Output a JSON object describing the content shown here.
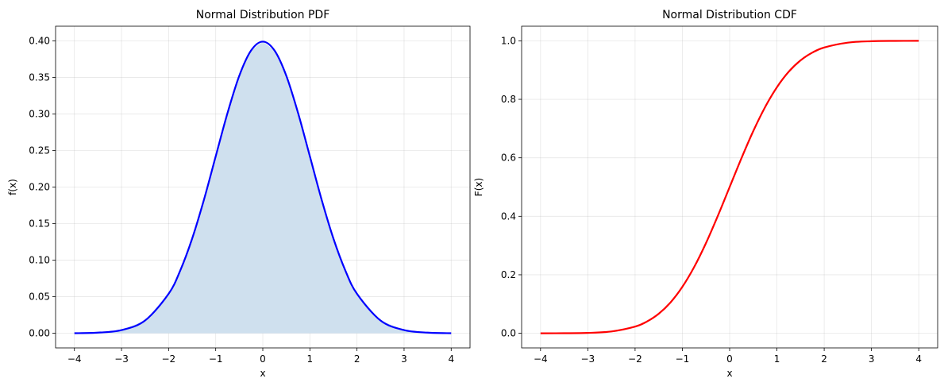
{
  "chart_data": [
    {
      "type": "area",
      "title": "Normal Distribution PDF",
      "xlabel": "x",
      "ylabel": "f(x)",
      "xlim": [
        -4.4,
        4.4
      ],
      "ylim": [
        -0.02,
        0.42
      ],
      "xticks": [
        -4,
        -3,
        -2,
        -1,
        0,
        1,
        2,
        3,
        4
      ],
      "xtick_labels": [
        "−4",
        "−3",
        "−2",
        "−1",
        "0",
        "1",
        "2",
        "3",
        "4"
      ],
      "yticks": [
        0.0,
        0.05,
        0.1,
        0.15,
        0.2,
        0.25,
        0.3,
        0.35,
        0.4
      ],
      "ytick_labels": [
        "0.00",
        "0.05",
        "0.10",
        "0.15",
        "0.20",
        "0.25",
        "0.30",
        "0.35",
        "0.40"
      ],
      "grid": true,
      "line_color": "#0000ff",
      "fill_color": "#cfe0ee",
      "x": [
        -4.0,
        -3.5,
        -3.0,
        -2.5,
        -2.0,
        -1.75,
        -1.5,
        -1.25,
        -1.0,
        -0.75,
        -0.5,
        -0.25,
        0.0,
        0.25,
        0.5,
        0.75,
        1.0,
        1.25,
        1.5,
        1.75,
        2.0,
        2.5,
        3.0,
        3.5,
        4.0
      ],
      "y": [
        0.0001,
        0.0009,
        0.0044,
        0.0175,
        0.054,
        0.0863,
        0.1295,
        0.1826,
        0.242,
        0.3011,
        0.3521,
        0.3867,
        0.3989,
        0.3867,
        0.3521,
        0.3011,
        0.242,
        0.1826,
        0.1295,
        0.0863,
        0.054,
        0.0175,
        0.0044,
        0.0009,
        0.0001
      ]
    },
    {
      "type": "line",
      "title": "Normal Distribution CDF",
      "xlabel": "x",
      "ylabel": "F(x)",
      "xlim": [
        -4.4,
        4.4
      ],
      "ylim": [
        -0.05,
        1.05
      ],
      "xticks": [
        -4,
        -3,
        -2,
        -1,
        0,
        1,
        2,
        3,
        4
      ],
      "xtick_labels": [
        "−4",
        "−3",
        "−2",
        "−1",
        "0",
        "1",
        "2",
        "3",
        "4"
      ],
      "yticks": [
        0.0,
        0.2,
        0.4,
        0.6,
        0.8,
        1.0
      ],
      "ytick_labels": [
        "0.0",
        "0.2",
        "0.4",
        "0.6",
        "0.8",
        "1.0"
      ],
      "grid": true,
      "line_color": "#ff0000",
      "x": [
        -4.0,
        -3.5,
        -3.0,
        -2.5,
        -2.0,
        -1.75,
        -1.5,
        -1.25,
        -1.0,
        -0.75,
        -0.5,
        -0.25,
        0.0,
        0.25,
        0.5,
        0.75,
        1.0,
        1.25,
        1.5,
        1.75,
        2.0,
        2.5,
        3.0,
        3.5,
        4.0
      ],
      "y": [
        0.0,
        0.0002,
        0.0013,
        0.0062,
        0.0228,
        0.0401,
        0.0668,
        0.1056,
        0.1587,
        0.2266,
        0.3085,
        0.4013,
        0.5,
        0.5987,
        0.6915,
        0.7734,
        0.8413,
        0.8944,
        0.9332,
        0.9599,
        0.9772,
        0.9938,
        0.9987,
        0.9998,
        1.0
      ]
    }
  ]
}
